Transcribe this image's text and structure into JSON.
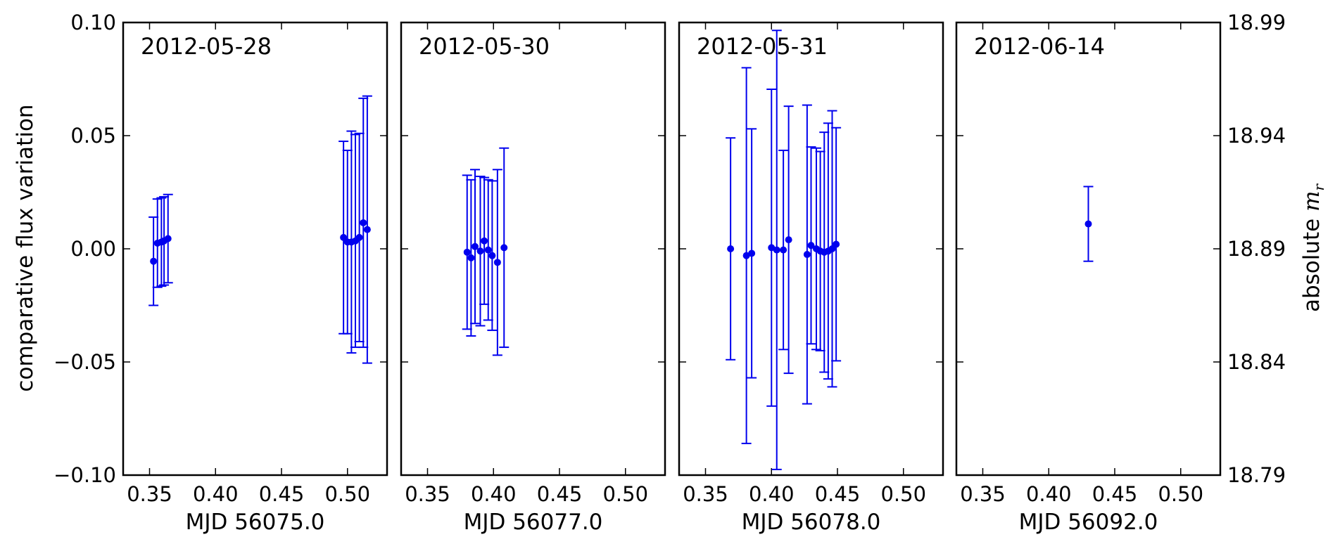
{
  "chart_data": {
    "type": "scatter",
    "ylabel": "comparative flux variation",
    "ylim": [
      -0.1,
      0.1
    ],
    "yticks": [
      "0.10",
      "0.05",
      "0.00",
      "−0.05",
      "−0.10"
    ],
    "ytick_values": [
      0.1,
      0.05,
      0.0,
      -0.05,
      -0.1
    ],
    "right_ylabel": "absolute m_r",
    "right_ylabel_base": "absolute ",
    "right_ylabel_math": "m",
    "right_ylabel_sub": "r",
    "right_yticks": [
      "18.99",
      "18.94",
      "18.89",
      "18.84",
      "18.79"
    ],
    "xlim": [
      0.33,
      0.53
    ],
    "xticks": [
      "0.35",
      "0.40",
      "0.45",
      "0.50"
    ],
    "xtick_values": [
      0.35,
      0.4,
      0.45,
      0.5
    ],
    "color": "#0000ee",
    "grid": false,
    "panels": [
      {
        "date": "2012-05-28",
        "xlabel": "MJD 56075.0",
        "points": [
          {
            "x": 0.353,
            "y": -0.0055,
            "err": 0.0195
          },
          {
            "x": 0.356,
            "y": 0.0025,
            "err": 0.0195
          },
          {
            "x": 0.359,
            "y": 0.003,
            "err": 0.0195
          },
          {
            "x": 0.361,
            "y": 0.0035,
            "err": 0.0195
          },
          {
            "x": 0.364,
            "y": 0.0045,
            "err": 0.0195
          },
          {
            "x": 0.497,
            "y": 0.005,
            "err": 0.0425
          },
          {
            "x": 0.5,
            "y": 0.003,
            "err": 0.0405
          },
          {
            "x": 0.503,
            "y": 0.003,
            "err": 0.049
          },
          {
            "x": 0.506,
            "y": 0.0035,
            "err": 0.047
          },
          {
            "x": 0.509,
            "y": 0.005,
            "err": 0.046
          },
          {
            "x": 0.512,
            "y": 0.0115,
            "err": 0.055
          },
          {
            "x": 0.515,
            "y": 0.0085,
            "err": 0.059
          }
        ]
      },
      {
        "date": "2012-05-30",
        "xlabel": "MJD 56077.0",
        "points": [
          {
            "x": 0.38,
            "y": -0.0015,
            "err": 0.034
          },
          {
            "x": 0.383,
            "y": -0.004,
            "err": 0.0345
          },
          {
            "x": 0.386,
            "y": 0.001,
            "err": 0.034
          },
          {
            "x": 0.39,
            "y": -0.001,
            "err": 0.033
          },
          {
            "x": 0.393,
            "y": 0.0035,
            "err": 0.028
          },
          {
            "x": 0.396,
            "y": -0.0005,
            "err": 0.031
          },
          {
            "x": 0.399,
            "y": -0.003,
            "err": 0.033
          },
          {
            "x": 0.403,
            "y": -0.006,
            "err": 0.041
          },
          {
            "x": 0.408,
            "y": 0.0005,
            "err": 0.044
          }
        ]
      },
      {
        "date": "2012-05-31",
        "xlabel": "MJD 56078.0",
        "points": [
          {
            "x": 0.369,
            "y": 0.0,
            "err": 0.049
          },
          {
            "x": 0.381,
            "y": -0.003,
            "err": 0.083
          },
          {
            "x": 0.385,
            "y": -0.002,
            "err": 0.055
          },
          {
            "x": 0.4,
            "y": 0.0005,
            "err": 0.07
          },
          {
            "x": 0.404,
            "y": -0.0005,
            "err": 0.097
          },
          {
            "x": 0.409,
            "y": -0.0005,
            "err": 0.044
          },
          {
            "x": 0.413,
            "y": 0.004,
            "err": 0.059
          },
          {
            "x": 0.427,
            "y": -0.0025,
            "err": 0.066
          },
          {
            "x": 0.43,
            "y": 0.0015,
            "err": 0.0435
          },
          {
            "x": 0.434,
            "y": 0.0,
            "err": 0.0445
          },
          {
            "x": 0.437,
            "y": -0.001,
            "err": 0.044
          },
          {
            "x": 0.44,
            "y": -0.0015,
            "err": 0.053
          },
          {
            "x": 0.443,
            "y": -0.001,
            "err": 0.0565
          },
          {
            "x": 0.446,
            "y": 0.0,
            "err": 0.061
          },
          {
            "x": 0.449,
            "y": 0.002,
            "err": 0.0515
          }
        ]
      },
      {
        "date": "2012-06-14",
        "xlabel": "MJD 56092.0",
        "points": [
          {
            "x": 0.43,
            "y": 0.011,
            "err": 0.0165
          }
        ]
      }
    ]
  }
}
